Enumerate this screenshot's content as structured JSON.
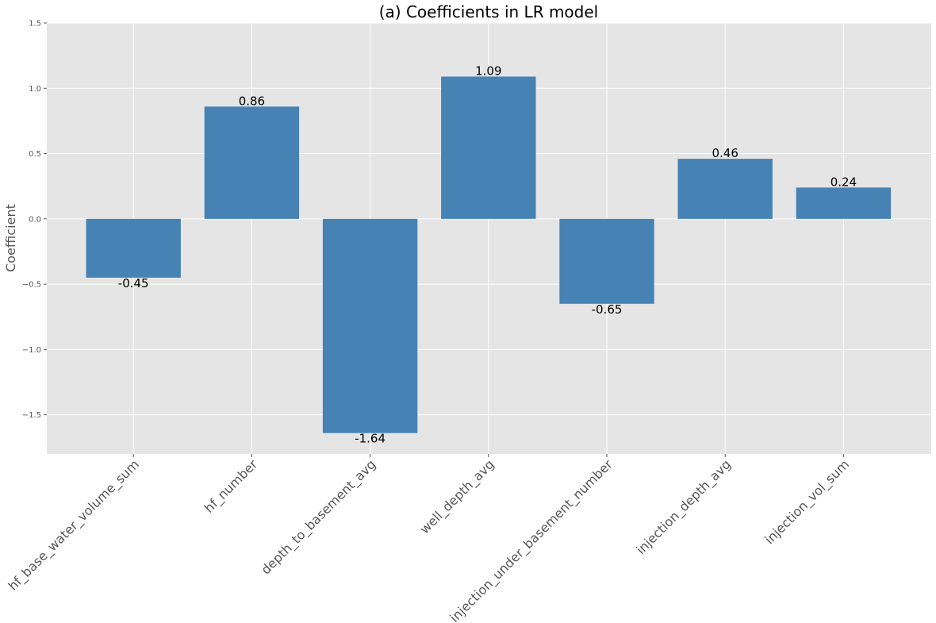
{
  "chart_data": {
    "type": "bar",
    "title": "(a) Coefficients in LR model",
    "xlabel": "",
    "ylabel": "Coefficient",
    "categories": [
      "hf_base_water_volume_sum",
      "hf_number",
      "depth_to_basement_avg",
      "well_depth_avg",
      "injection_under_basement_number",
      "injection_depth_avg",
      "injection_vol_sum"
    ],
    "values": [
      -0.45,
      0.86,
      -1.64,
      1.09,
      -0.65,
      0.46,
      0.24
    ],
    "data_labels": [
      "-0.45",
      "0.86",
      "-1.64",
      "1.09",
      "-0.65",
      "0.46",
      "0.24"
    ],
    "ylim": [
      -1.8,
      1.5
    ],
    "yticks": [
      -1.5,
      -1.0,
      -0.5,
      0.0,
      0.5,
      1.0,
      1.5
    ],
    "ytick_labels": [
      "−1.5",
      "−1.0",
      "−0.5",
      "0.0",
      "0.5",
      "1.0",
      "1.5"
    ],
    "grid": true,
    "colors": {
      "bar": "#4682b4",
      "plot_background": "#e5e5e5",
      "grid": "#ffffff"
    }
  }
}
